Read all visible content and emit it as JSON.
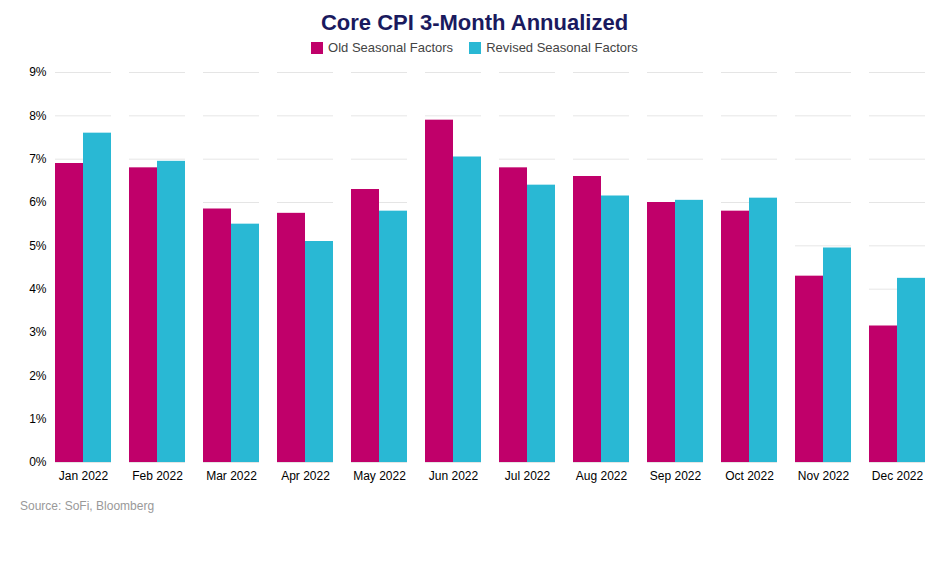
{
  "chart_data": {
    "type": "bar",
    "title": "Core CPI 3-Month Annualized",
    "source": "Source: SoFi, Bloomberg",
    "categories": [
      "Jan 2022",
      "Feb 2022",
      "Mar 2022",
      "Apr 2022",
      "May 2022",
      "Jun 2022",
      "Jul 2022",
      "Aug 2022",
      "Sep 2022",
      "Oct 2022",
      "Nov 2022",
      "Dec 2022"
    ],
    "series": [
      {
        "name": "Old Seasonal Factors",
        "color": "#C0006A",
        "values": [
          6.9,
          6.8,
          5.85,
          5.75,
          6.3,
          7.9,
          6.8,
          6.6,
          6.0,
          5.8,
          4.3,
          3.15
        ]
      },
      {
        "name": "Revised Seasonal Factors",
        "color": "#29B8D4",
        "values": [
          7.6,
          6.95,
          5.5,
          5.1,
          5.8,
          7.05,
          6.4,
          6.15,
          6.05,
          6.1,
          4.95,
          4.25
        ]
      }
    ],
    "ylim": [
      0,
      9
    ],
    "yticks": [
      {
        "value": 0,
        "label": "0%"
      },
      {
        "value": 1,
        "label": "1%"
      },
      {
        "value": 2,
        "label": "2%"
      },
      {
        "value": 3,
        "label": "3%"
      },
      {
        "value": 4,
        "label": "4%"
      },
      {
        "value": 5,
        "label": "5%"
      },
      {
        "value": 6,
        "label": "6%"
      },
      {
        "value": 7,
        "label": "7%"
      },
      {
        "value": 8,
        "label": "8%"
      },
      {
        "value": 9,
        "label": "9%"
      }
    ],
    "grid": true,
    "legend": "top"
  }
}
